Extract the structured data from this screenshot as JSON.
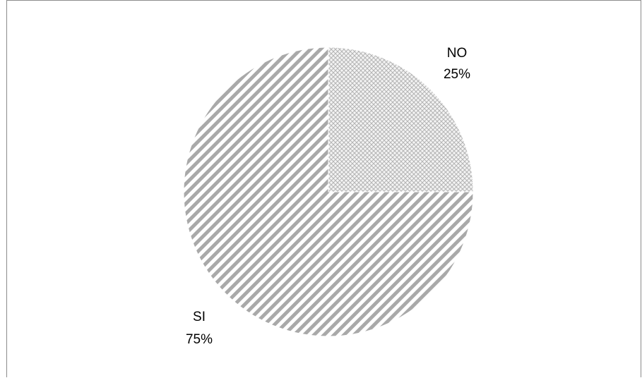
{
  "chart_data": {
    "type": "pie",
    "categories": [
      "NO",
      "SI"
    ],
    "values": [
      25,
      75
    ],
    "value_labels": [
      "25%",
      "75%"
    ],
    "title": "",
    "legend": "none",
    "colors": {
      "NO": "#c8c8c8",
      "SI": "#a8a8a8"
    }
  }
}
